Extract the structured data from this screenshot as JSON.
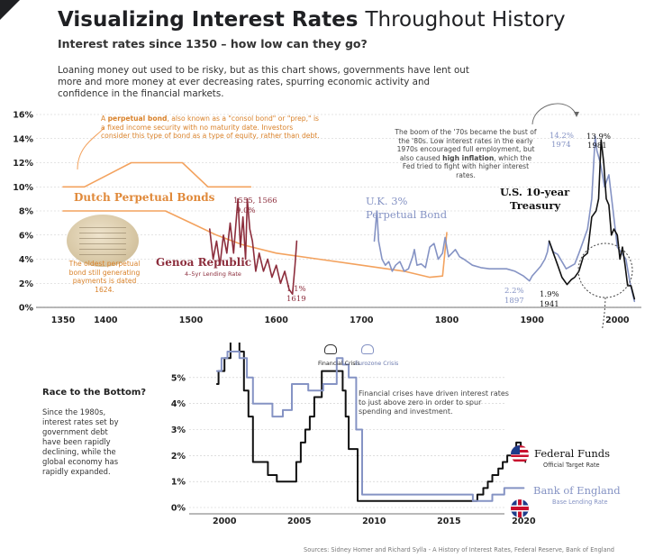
{
  "header": {
    "title_bold": "Visualizing Interest Rates",
    "title_light": "Throughout History",
    "subtitle": "Interest rates since 1350 – how low can they go?",
    "intro": "Loaning money out used to be risky, but as this chart shows, governments have lent out more and more money at ever decreasing rates, spurring economic activity and confidence in the financial markets."
  },
  "notes": {
    "perpetual_bond_a": "A ",
    "perpetual_bond_b": "perpetual bond",
    "perpetual_bond_c": ", also known as a \"consol bond\" or \"prep,\" is a fixed income security with no maturity date. Investors consider this type of bond as a type of equity, rather than debt.",
    "oldest_bond": "The oldest perpetual bond still generating payments is dated 1624.",
    "seventies_a": "The boom of the '70s became the bust of the '80s. Low interest rates in the early 1970s encouraged full employment, but also caused ",
    "seventies_b": "high inflation",
    "seventies_c": ", which the Fed tried to fight with higher interest rates.",
    "financial_crises": "Financial crises have driven interest rates to just above zero in order to spur spending and investment."
  },
  "race": {
    "heading": "Race to the Bottom?",
    "body": "Since the 1980s, interest rates set by government debt have been rapidly declining, while the global economy has rapidly expanded."
  },
  "sources": "Sources: Sidney Homer and Richard Sylla - A History of Interest Rates, Federal Reserve, Bank of England",
  "colors": {
    "orange": "#f3a25e",
    "maroon": "#8c2d3c",
    "blue": "#8593c4",
    "black": "#111111",
    "grid": "#c9c9c9"
  },
  "chart_data": [
    {
      "type": "line",
      "title": "Visualizing Interest Rates Throughout History",
      "xlabel": "",
      "ylabel": "",
      "xlim": [
        1350,
        2025
      ],
      "ylim": [
        0,
        16
      ],
      "grid": true,
      "x_ticks": [
        1350,
        1400,
        1500,
        1600,
        1700,
        1800,
        1900,
        2000
      ],
      "y_ticks": [
        0,
        2,
        4,
        6,
        8,
        10,
        12,
        14,
        16
      ],
      "y_tick_labels": [
        "0%",
        "2%",
        "4%",
        "6%",
        "8%",
        "10%",
        "12%",
        "14%",
        "16%"
      ],
      "x_tick_labels": [
        "1350",
        "1400",
        "1500",
        "1600",
        "1700",
        "1800",
        "1900",
        "2000"
      ],
      "series": [
        {
          "name": "Dutch Perpetual Bonds",
          "color": "#f3a25e",
          "x": [
            1350,
            1375,
            1430,
            1490,
            1520,
            1555,
            1560,
            1570
          ],
          "y": [
            10,
            10,
            12,
            12,
            10,
            10,
            10,
            10
          ]
        },
        {
          "name": "Dutch Perpetual Bonds (declining)",
          "color": "#f3a25e",
          "x": [
            1350,
            1430,
            1470,
            1500,
            1530,
            1560,
            1600,
            1650,
            1700,
            1750,
            1780,
            1795,
            1800
          ],
          "y": [
            8,
            8,
            8,
            7,
            6,
            5.2,
            4.5,
            4,
            3.5,
            3,
            2.5,
            2.6,
            6.2
          ]
        },
        {
          "name": "Genoa Republic (4–5yr Lending Rate)",
          "color": "#8c2d3c",
          "x": [
            1522,
            1526,
            1530,
            1534,
            1538,
            1542,
            1546,
            1550,
            1555,
            1558,
            1561,
            1564,
            1566,
            1569,
            1572,
            1576,
            1580,
            1585,
            1590,
            1595,
            1600,
            1605,
            1610,
            1615,
            1619,
            1622,
            1624
          ],
          "y": [
            6.5,
            4,
            5.5,
            3.5,
            6,
            4.5,
            7,
            4.5,
            9,
            5,
            7.5,
            4,
            9,
            6.5,
            5.5,
            3,
            4.5,
            3,
            4,
            2.5,
            3.5,
            2,
            3,
            1.5,
            1.1,
            3.5,
            5.5
          ]
        },
        {
          "name": "U.K. 3% Perpetual Bond",
          "color": "#8593c4",
          "x": [
            1715,
            1718,
            1720,
            1724,
            1728,
            1732,
            1736,
            1740,
            1745,
            1750,
            1755,
            1760,
            1762,
            1765,
            1770,
            1775,
            1780,
            1785,
            1790,
            1795,
            1798,
            1802,
            1810,
            1815,
            1820,
            1830,
            1840,
            1850,
            1860,
            1870,
            1880,
            1890,
            1897,
            1900,
            1905,
            1910,
            1915,
            1918,
            1920,
            1925,
            1930,
            1940,
            1950,
            1955,
            1960,
            1965,
            1970,
            1974,
            1976,
            1980,
            1985,
            1990,
            1995,
            2000,
            2005,
            2010,
            2015,
            2020
          ],
          "y": [
            5.5,
            8,
            5.5,
            4,
            3.5,
            3.8,
            3,
            3.5,
            3.8,
            3,
            3.2,
            4.2,
            4.8,
            3.5,
            3.6,
            3.3,
            5,
            5.3,
            4,
            4.5,
            5.8,
            4.2,
            4.8,
            4.2,
            4,
            3.5,
            3.3,
            3.2,
            3.2,
            3.2,
            3,
            2.6,
            2.2,
            2.6,
            3,
            3.4,
            4,
            4.6,
            5.5,
            4.6,
            4.4,
            3.2,
            3.6,
            4.5,
            5.5,
            6.5,
            9,
            14.2,
            13,
            12,
            10,
            11,
            8,
            5,
            4.5,
            4,
            2,
            0.5
          ]
        },
        {
          "name": "U.S. 10-year Treasury",
          "color": "#111111",
          "x": [
            1920,
            1925,
            1930,
            1935,
            1941,
            1946,
            1950,
            1955,
            1960,
            1965,
            1970,
            1975,
            1978,
            1981,
            1984,
            1987,
            1990,
            1993,
            1996,
            2000,
            2003,
            2006,
            2009,
            2012,
            2016,
            2020
          ],
          "y": [
            5.5,
            4.5,
            3.5,
            2.5,
            1.9,
            2.3,
            2.5,
            3,
            4.2,
            4.5,
            7.5,
            8,
            9,
            13.9,
            12,
            9,
            8.5,
            6,
            6.5,
            6,
            4,
            5,
            3.5,
            1.8,
            1.8,
            0.7
          ]
        }
      ],
      "annotations": {
        "dutch": "Dutch Perpetual Bonds",
        "genoa_title": "Genoa Republic",
        "genoa_sub": "4–5yr Lending Rate",
        "genoa_peak_years": "1555, 1566",
        "genoa_peak_value": "9.0%",
        "genoa_low_value": "1.1%",
        "genoa_low_year": "1619",
        "uk_title_1": "U.K. 3%",
        "uk_title_2": "Perpetual Bond",
        "uk_low_value": "2.2%",
        "uk_low_year": "1897",
        "uk_peak_value": "14.2%",
        "uk_peak_year": "1974",
        "us_title_1": "U.S. 10-year",
        "us_title_2": "Treasury",
        "us_peak_value": "13.9%",
        "us_peak_year": "1981",
        "us_low_value": "1.9%",
        "us_low_year": "1941"
      }
    },
    {
      "type": "line",
      "title": "Race to the Bottom?",
      "xlim": [
        1998,
        2021
      ],
      "ylim": [
        0,
        6
      ],
      "grid": true,
      "x_ticks": [
        2000,
        2005,
        2010,
        2015,
        2020
      ],
      "x_tick_labels": [
        "2000",
        "2005",
        "2010",
        "2015",
        "2020"
      ],
      "y_ticks": [
        0,
        1,
        2,
        3,
        4,
        5
      ],
      "y_tick_labels": [
        "0%",
        "1%",
        "2%",
        "3%",
        "4%",
        "5%"
      ],
      "series": [
        {
          "name": "Federal Funds (Official Target Rate)",
          "color": "#111111",
          "x": [
            1999.5,
            1999.6,
            2000,
            2000.4,
            2001,
            2001.3,
            2001.6,
            2001.9,
            2002.9,
            2003.5,
            2004.5,
            2004.8,
            2005.1,
            2005.4,
            2005.7,
            2006,
            2006.5,
            2007.7,
            2007.9,
            2008.1,
            2008.3,
            2008.9,
            2015.9,
            2016.9,
            2017.3,
            2017.6,
            2017.9,
            2018.3,
            2018.6,
            2018.9,
            2019.5,
            2019.8,
            2020.1
          ],
          "y": [
            4.75,
            5.25,
            5.75,
            6.5,
            6,
            4.5,
            3.5,
            1.75,
            1.25,
            1,
            1,
            1.75,
            2.5,
            3,
            3.5,
            4.25,
            5.25,
            5.25,
            4.5,
            3.5,
            2.25,
            0.25,
            0.25,
            0.5,
            0.75,
            1,
            1.25,
            1.5,
            1.75,
            2,
            2.5,
            2,
            1.75
          ]
        },
        {
          "name": "Bank of England (Base Lending Rate)",
          "color": "#8593c4",
          "x": [
            1999.5,
            1999.8,
            2000.2,
            2001,
            2001.5,
            2001.9,
            2003.2,
            2003.9,
            2004.5,
            2005.6,
            2006.6,
            2007.5,
            2007.9,
            2008.3,
            2008.8,
            2009.2,
            2016.6,
            2017.9,
            2018.7,
            2020
          ],
          "y": [
            5.25,
            5.75,
            6,
            5.75,
            5,
            4,
            3.5,
            3.75,
            4.75,
            4.5,
            4.75,
            5.75,
            5.5,
            5,
            3,
            0.5,
            0.25,
            0.5,
            0.75,
            0.75
          ]
        }
      ],
      "annotations": {
        "financial_crisis": "Financial Crisis",
        "eurozone_crisis": "Eurozone Crisis",
        "fed_title": "Federal Funds",
        "fed_sub": "Official Target Rate",
        "boe_title": "Bank of England",
        "boe_sub": "Base Lending Rate"
      }
    }
  ]
}
